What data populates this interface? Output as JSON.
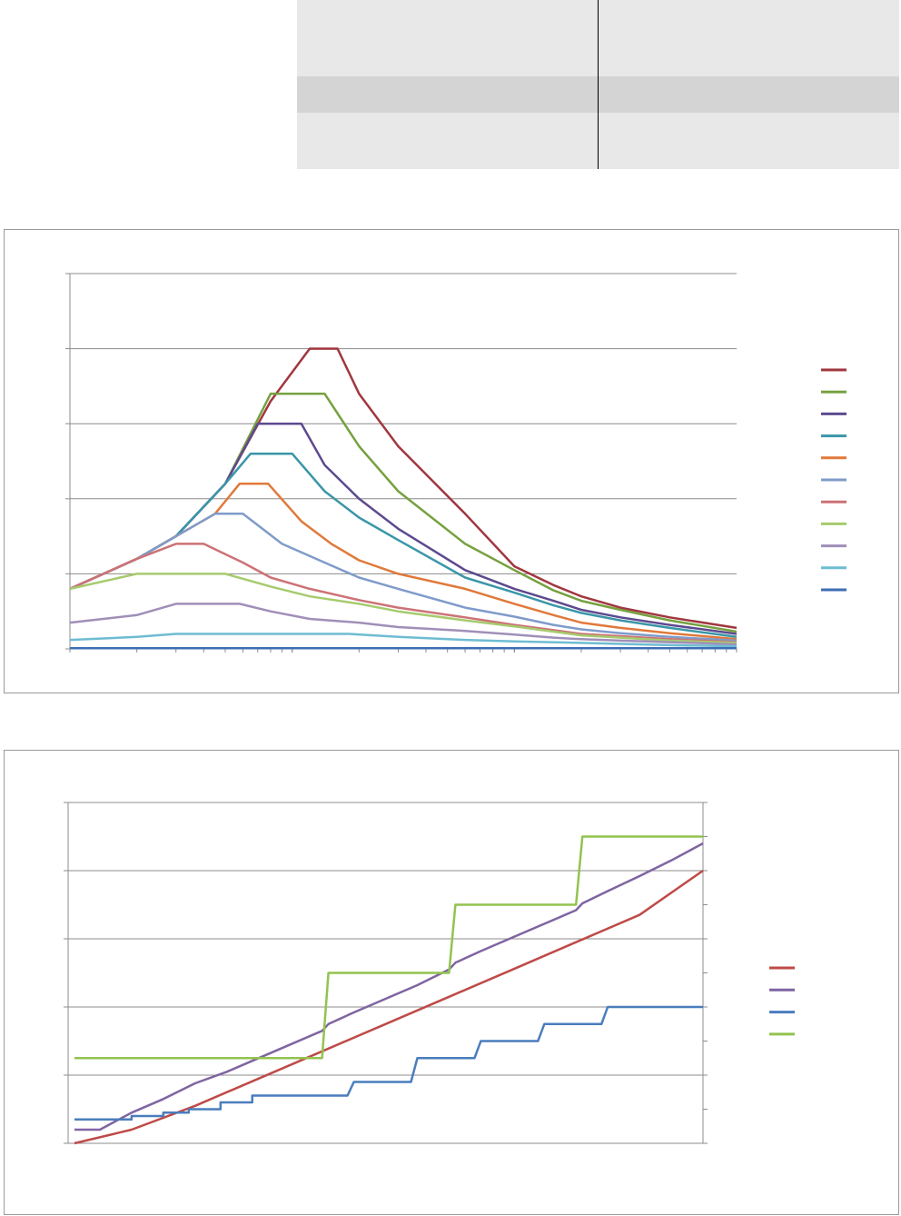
{
  "table": {
    "rows": [
      {
        "color": "#e8e8e8",
        "cells": [
          "",
          ""
        ]
      },
      {
        "color": "#d4d4d4",
        "cells": [
          "",
          ""
        ]
      },
      {
        "color": "#e8e8e8",
        "cells": [
          "",
          ""
        ]
      }
    ]
  },
  "chart_data": [
    {
      "type": "line",
      "title": "",
      "xlabel": "",
      "ylabel": "",
      "x_scale": "log",
      "xlim": [
        1,
        1000
      ],
      "ylim": [
        0,
        50
      ],
      "grid": true,
      "legend_position": "right",
      "series": [
        {
          "color": "#a0373f",
          "points": [
            [
              1,
              8
            ],
            [
              2,
              12
            ],
            [
              3,
              15
            ],
            [
              5,
              22
            ],
            [
              8,
              33
            ],
            [
              12,
              40
            ],
            [
              16,
              40
            ],
            [
              20,
              34
            ],
            [
              30,
              27
            ],
            [
              60,
              18
            ],
            [
              100,
              11
            ],
            [
              150,
              8.5
            ],
            [
              200,
              7
            ],
            [
              300,
              5.5
            ],
            [
              500,
              4.2
            ],
            [
              1000,
              2.8
            ]
          ]
        },
        {
          "color": "#76a13f",
          "points": [
            [
              1,
              8
            ],
            [
              2,
              12
            ],
            [
              3,
              15
            ],
            [
              5,
              22
            ],
            [
              8,
              34
            ],
            [
              14,
              34
            ],
            [
              20,
              27
            ],
            [
              30,
              21
            ],
            [
              60,
              14
            ],
            [
              100,
              10.5
            ],
            [
              150,
              7.8
            ],
            [
              200,
              6.4
            ],
            [
              300,
              5.2
            ],
            [
              500,
              3.8
            ],
            [
              1000,
              2.3
            ]
          ]
        },
        {
          "color": "#5d4a8f",
          "points": [
            [
              1,
              8
            ],
            [
              2,
              12
            ],
            [
              3,
              15
            ],
            [
              5,
              22
            ],
            [
              7,
              30
            ],
            [
              11,
              30
            ],
            [
              14,
              24.5
            ],
            [
              20,
              20
            ],
            [
              30,
              16
            ],
            [
              60,
              10.5
            ],
            [
              100,
              8
            ],
            [
              150,
              6.4
            ],
            [
              200,
              5.2
            ],
            [
              300,
              4.2
            ],
            [
              500,
              3.2
            ],
            [
              1000,
              2
            ]
          ]
        },
        {
          "color": "#3a96a8",
          "points": [
            [
              1,
              8
            ],
            [
              2,
              12
            ],
            [
              3,
              15
            ],
            [
              5,
              22
            ],
            [
              6.5,
              26
            ],
            [
              10,
              26
            ],
            [
              14,
              21
            ],
            [
              20,
              17.5
            ],
            [
              30,
              14.5
            ],
            [
              60,
              9.5
            ],
            [
              100,
              7.5
            ],
            [
              150,
              5.8
            ],
            [
              200,
              4.8
            ],
            [
              300,
              3.8
            ],
            [
              500,
              2.8
            ],
            [
              1000,
              1.6
            ]
          ]
        },
        {
          "color": "#e0793a",
          "points": [
            [
              1,
              8
            ],
            [
              2,
              12
            ],
            [
              3,
              15
            ],
            [
              4.5,
              18
            ],
            [
              5.8,
              22
            ],
            [
              7.8,
              22
            ],
            [
              11,
              17
            ],
            [
              15,
              14
            ],
            [
              20,
              11.8
            ],
            [
              30,
              10
            ],
            [
              60,
              8
            ],
            [
              100,
              6
            ],
            [
              150,
              4.5
            ],
            [
              200,
              3.5
            ],
            [
              300,
              2.8
            ],
            [
              500,
              2.1
            ],
            [
              1000,
              1.3
            ]
          ]
        },
        {
          "color": "#7f9bca",
          "points": [
            [
              1,
              8
            ],
            [
              2,
              12
            ],
            [
              3,
              15
            ],
            [
              4.5,
              18
            ],
            [
              6,
              18
            ],
            [
              9,
              14
            ],
            [
              14,
              11.5
            ],
            [
              20,
              9.5
            ],
            [
              30,
              8
            ],
            [
              60,
              5.5
            ],
            [
              100,
              4.3
            ],
            [
              150,
              3.2
            ],
            [
              200,
              2.6
            ],
            [
              300,
              2.1
            ],
            [
              500,
              1.6
            ],
            [
              1000,
              1.1
            ]
          ]
        },
        {
          "color": "#cc7276",
          "points": [
            [
              1,
              8
            ],
            [
              2,
              12
            ],
            [
              3,
              14
            ],
            [
              4,
              14
            ],
            [
              6,
              11.5
            ],
            [
              8,
              9.5
            ],
            [
              12,
              8
            ],
            [
              20,
              6.5
            ],
            [
              30,
              5.5
            ],
            [
              60,
              4.2
            ],
            [
              100,
              3.2
            ],
            [
              150,
              2.5
            ],
            [
              200,
              2
            ],
            [
              300,
              1.7
            ],
            [
              500,
              1.3
            ],
            [
              1000,
              0.9
            ]
          ]
        },
        {
          "color": "#a6cb6e",
          "points": [
            [
              1,
              8
            ],
            [
              2,
              10
            ],
            [
              5,
              10
            ],
            [
              8,
              8.3
            ],
            [
              12,
              7
            ],
            [
              20,
              6
            ],
            [
              30,
              5
            ],
            [
              60,
              3.8
            ],
            [
              100,
              3
            ],
            [
              150,
              2.3
            ],
            [
              200,
              1.8
            ],
            [
              300,
              1.5
            ],
            [
              500,
              1.1
            ],
            [
              1000,
              0.8
            ]
          ]
        },
        {
          "color": "#a08fb8",
          "points": [
            [
              1,
              3.5
            ],
            [
              2,
              4.5
            ],
            [
              3,
              6
            ],
            [
              5.8,
              6
            ],
            [
              8,
              5
            ],
            [
              12,
              4
            ],
            [
              20,
              3.5
            ],
            [
              30,
              2.9
            ],
            [
              60,
              2.4
            ],
            [
              100,
              1.9
            ],
            [
              150,
              1.5
            ],
            [
              200,
              1.3
            ],
            [
              300,
              1.1
            ],
            [
              500,
              0.9
            ],
            [
              1000,
              0.6
            ]
          ]
        },
        {
          "color": "#6ebcd2",
          "points": [
            [
              1,
              1.2
            ],
            [
              2,
              1.6
            ],
            [
              3,
              2
            ],
            [
              10,
              2
            ],
            [
              18,
              2
            ],
            [
              30,
              1.6
            ],
            [
              60,
              1.2
            ],
            [
              100,
              1
            ],
            [
              200,
              0.8
            ],
            [
              500,
              0.5
            ],
            [
              1000,
              0.35
            ]
          ]
        },
        {
          "color": "#3d6db5",
          "points": [
            [
              1,
              0.1
            ],
            [
              1000,
              0.1
            ]
          ]
        }
      ]
    },
    {
      "type": "line",
      "title": "",
      "xlabel": "",
      "ylabel": "",
      "xlim": [
        0,
        100
      ],
      "ylim": [
        0,
        5
      ],
      "y2lim": [
        0,
        10
      ],
      "grid": true,
      "legend_position": "right",
      "series": [
        {
          "color": "#be4b48",
          "axis": "left",
          "points": [
            [
              1,
              0
            ],
            [
              10,
              0.2
            ],
            [
              20,
              0.55
            ],
            [
              30,
              0.95
            ],
            [
              40,
              1.35
            ],
            [
              50,
              1.75
            ],
            [
              60,
              2.15
            ],
            [
              70,
              2.55
            ],
            [
              80,
              2.95
            ],
            [
              90,
              3.35
            ],
            [
              100,
              4
            ]
          ]
        },
        {
          "color": "#7f64a2",
          "axis": "left",
          "points": [
            [
              1,
              0.2
            ],
            [
              5,
              0.2
            ],
            [
              10,
              0.45
            ],
            [
              15,
              0.65
            ],
            [
              20,
              0.88
            ],
            [
              25,
              1.05
            ],
            [
              30,
              1.25
            ],
            [
              35,
              1.45
            ],
            [
              40,
              1.65
            ],
            [
              41,
              1.75
            ],
            [
              45,
              1.92
            ],
            [
              50,
              2.12
            ],
            [
              55,
              2.32
            ],
            [
              60,
              2.55
            ],
            [
              61,
              2.65
            ],
            [
              65,
              2.82
            ],
            [
              70,
              3.02
            ],
            [
              75,
              3.22
            ],
            [
              80,
              3.42
            ],
            [
              81,
              3.52
            ],
            [
              85,
              3.7
            ],
            [
              90,
              3.92
            ],
            [
              95,
              4.15
            ],
            [
              100,
              4.4
            ]
          ]
        },
        {
          "color": "#4a7dbd",
          "axis": "right",
          "points": [
            [
              1,
              0.7
            ],
            [
              10,
              0.7
            ],
            [
              10,
              0.8
            ],
            [
              15,
              0.8
            ],
            [
              15,
              0.9
            ],
            [
              19,
              0.9
            ],
            [
              19,
              1
            ],
            [
              24,
              1
            ],
            [
              24,
              1.2
            ],
            [
              29,
              1.2
            ],
            [
              29,
              1.4
            ],
            [
              44,
              1.4
            ],
            [
              45,
              1.8
            ],
            [
              54,
              1.8
            ],
            [
              55,
              2.5
            ],
            [
              64,
              2.5
            ],
            [
              65,
              3
            ],
            [
              74,
              3
            ],
            [
              75,
              3.5
            ],
            [
              84,
              3.5
            ],
            [
              85,
              4
            ],
            [
              100,
              4
            ]
          ]
        },
        {
          "color": "#92c34f",
          "axis": "right",
          "points": [
            [
              1,
              2.5
            ],
            [
              40,
              2.5
            ],
            [
              41,
              5
            ],
            [
              60,
              5
            ],
            [
              61,
              7
            ],
            [
              80,
              7
            ],
            [
              81,
              9
            ],
            [
              100,
              9
            ]
          ]
        }
      ]
    }
  ]
}
